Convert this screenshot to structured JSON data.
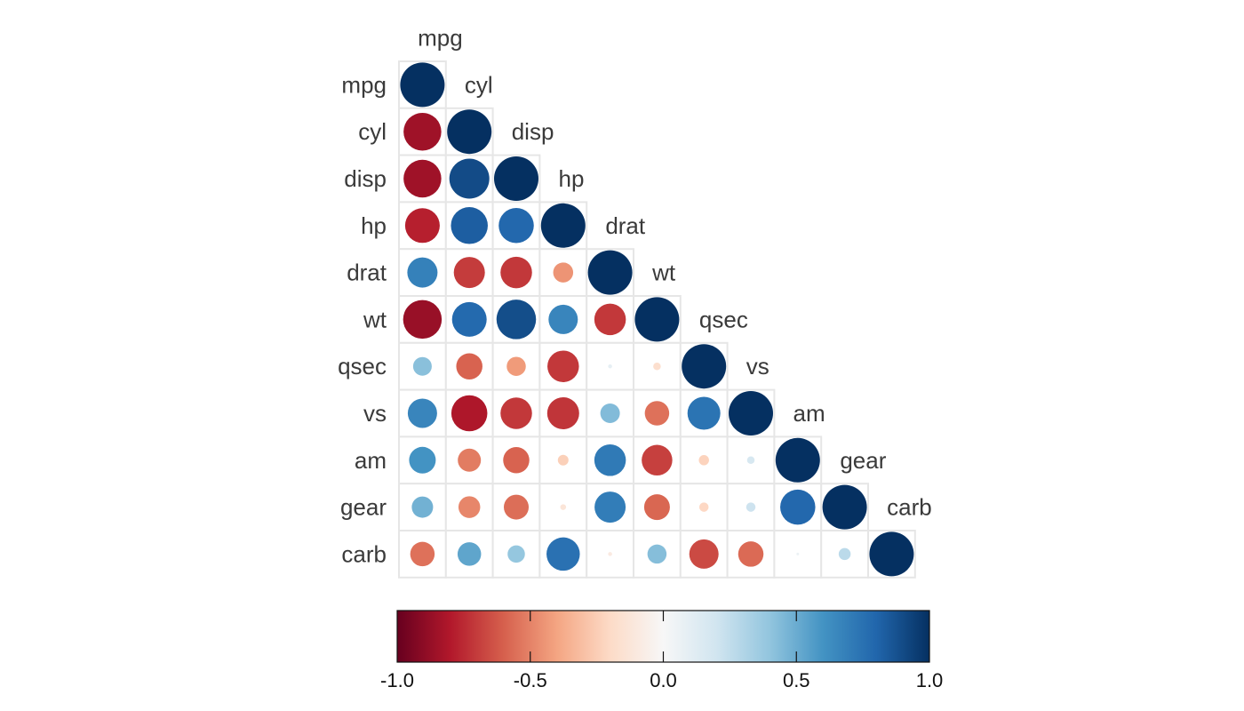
{
  "chart_data": {
    "type": "heatmap",
    "style": "corrplot-circle-lower-triangle",
    "variables": [
      "mpg",
      "cyl",
      "disp",
      "hp",
      "drat",
      "wt",
      "qsec",
      "vs",
      "am",
      "gear",
      "carb"
    ],
    "matrix": [
      [
        1.0,
        -0.85,
        -0.85,
        -0.78,
        0.68,
        -0.87,
        0.42,
        0.66,
        0.6,
        0.48,
        -0.55
      ],
      [
        -0.85,
        1.0,
        0.9,
        0.83,
        -0.7,
        0.78,
        -0.59,
        -0.81,
        -0.52,
        -0.49,
        0.53
      ],
      [
        -0.85,
        0.9,
        1.0,
        0.79,
        -0.71,
        0.89,
        -0.43,
        -0.71,
        -0.59,
        -0.56,
        0.39
      ],
      [
        -0.78,
        0.83,
        0.79,
        1.0,
        -0.45,
        0.66,
        -0.71,
        -0.72,
        -0.24,
        -0.13,
        0.75
      ],
      [
        0.68,
        -0.7,
        -0.71,
        -0.45,
        1.0,
        -0.71,
        0.09,
        0.44,
        0.71,
        0.7,
        -0.09
      ],
      [
        -0.87,
        0.78,
        0.89,
        0.66,
        -0.71,
        1.0,
        -0.17,
        -0.55,
        -0.69,
        -0.58,
        0.43
      ],
      [
        0.42,
        -0.59,
        -0.43,
        -0.71,
        0.09,
        -0.17,
        1.0,
        0.74,
        -0.23,
        -0.21,
        -0.66
      ],
      [
        0.66,
        -0.81,
        -0.71,
        -0.72,
        0.44,
        -0.55,
        0.74,
        1.0,
        0.17,
        0.21,
        -0.57
      ],
      [
        0.6,
        -0.52,
        -0.59,
        -0.24,
        0.71,
        -0.69,
        -0.23,
        0.17,
        1.0,
        0.79,
        0.06
      ],
      [
        0.48,
        -0.49,
        -0.56,
        -0.13,
        0.7,
        -0.58,
        -0.21,
        0.21,
        0.79,
        1.0,
        0.27
      ],
      [
        -0.55,
        0.53,
        0.39,
        0.75,
        -0.09,
        0.43,
        -0.66,
        -0.57,
        0.06,
        0.27,
        1.0
      ]
    ],
    "colorbar": {
      "min": -1.0,
      "max": 1.0,
      "ticks": [
        -1.0,
        -0.5,
        0.0,
        0.5,
        1.0
      ],
      "tick_labels": [
        "-1.0",
        "-0.5",
        "0.0",
        "0.5",
        "1.0"
      ],
      "colors": [
        "#67001f",
        "#b2182b",
        "#d6604d",
        "#f4a582",
        "#fddbc7",
        "#f7f7f7",
        "#d1e5f0",
        "#92c5de",
        "#4393c3",
        "#2166ac",
        "#053061"
      ]
    },
    "title": "",
    "xlabel": "",
    "ylabel": ""
  },
  "colors": {
    "grid": "#e6e6e6",
    "label": "#3a3a3a",
    "tick_text": "#111111"
  }
}
